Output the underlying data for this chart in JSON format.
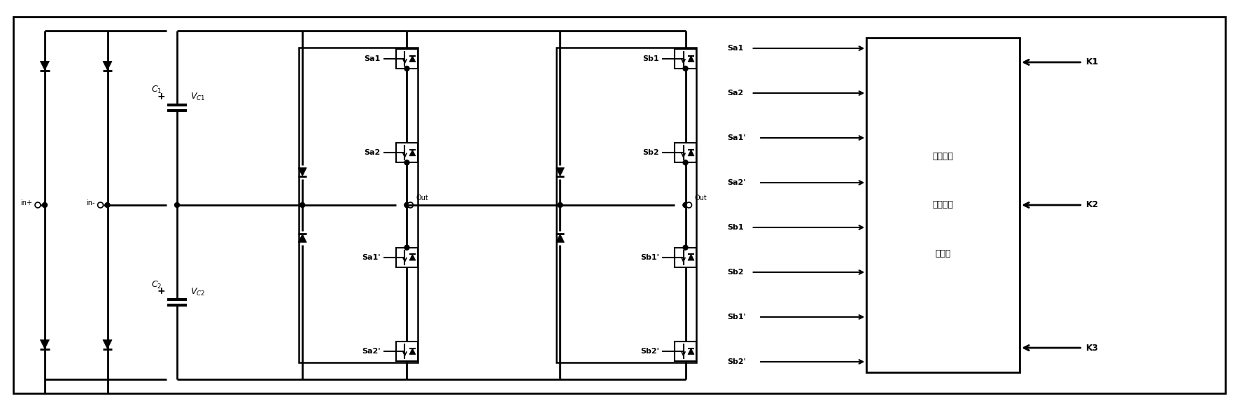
{
  "bg_color": "#ffffff",
  "line_color": "#000000",
  "line_width": 2.0,
  "fig_width": 17.72,
  "fig_height": 5.83,
  "dpi": 100,
  "ctrl_labels": [
    "Sa1",
    "Sa2",
    "Sa1'",
    "Sa2'",
    "Sb1",
    "Sb2",
    "Sb1'",
    "Sb2'"
  ],
  "k_labels": [
    "K1",
    "K2",
    "K3"
  ],
  "chinese_text": [
    "载波轮换",
    "脉宽调制",
    "控制器"
  ],
  "in_plus": "in+",
  "in_minus": "in-"
}
